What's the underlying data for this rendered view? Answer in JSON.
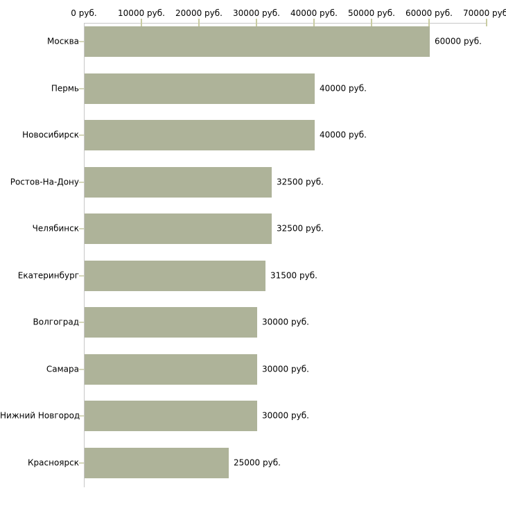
{
  "chart_data": {
    "type": "bar",
    "orientation": "horizontal",
    "title": "",
    "xlabel": "",
    "ylabel": "",
    "grid": false,
    "legend": false,
    "categories": [
      "Москва",
      "Пермь",
      "Новосибирск",
      "Ростов-На-Дону",
      "Челябинск",
      "Екатеринбург",
      "Волгоград",
      "Самара",
      "Нижний Новгород",
      "Красноярск"
    ],
    "values": [
      60000,
      40000,
      40000,
      32500,
      32500,
      31500,
      30000,
      30000,
      30000,
      25000
    ],
    "value_labels": [
      "60000 руб.",
      "40000 руб.",
      "40000 руб.",
      "32500 руб.",
      "32500 руб.",
      "31500 руб.",
      "30000 руб.",
      "30000 руб.",
      "30000 руб.",
      "25000 руб."
    ],
    "xlim": [
      0,
      70000
    ],
    "x_ticks": [
      0,
      10000,
      20000,
      30000,
      40000,
      50000,
      60000,
      70000
    ],
    "x_tick_labels": [
      "0 руб.",
      "10000 руб.",
      "20000 руб.",
      "30000 руб.",
      "40000 руб.",
      "50000 руб.",
      "60000 руб.",
      "70000 руб."
    ],
    "colors": {
      "bar": "#aeb399",
      "axis_line": "#c6c6c6",
      "axis_tick": "#c9cca2",
      "category_tick": "#d4d6b8",
      "text": "#000000",
      "background": "#ffffff"
    }
  }
}
